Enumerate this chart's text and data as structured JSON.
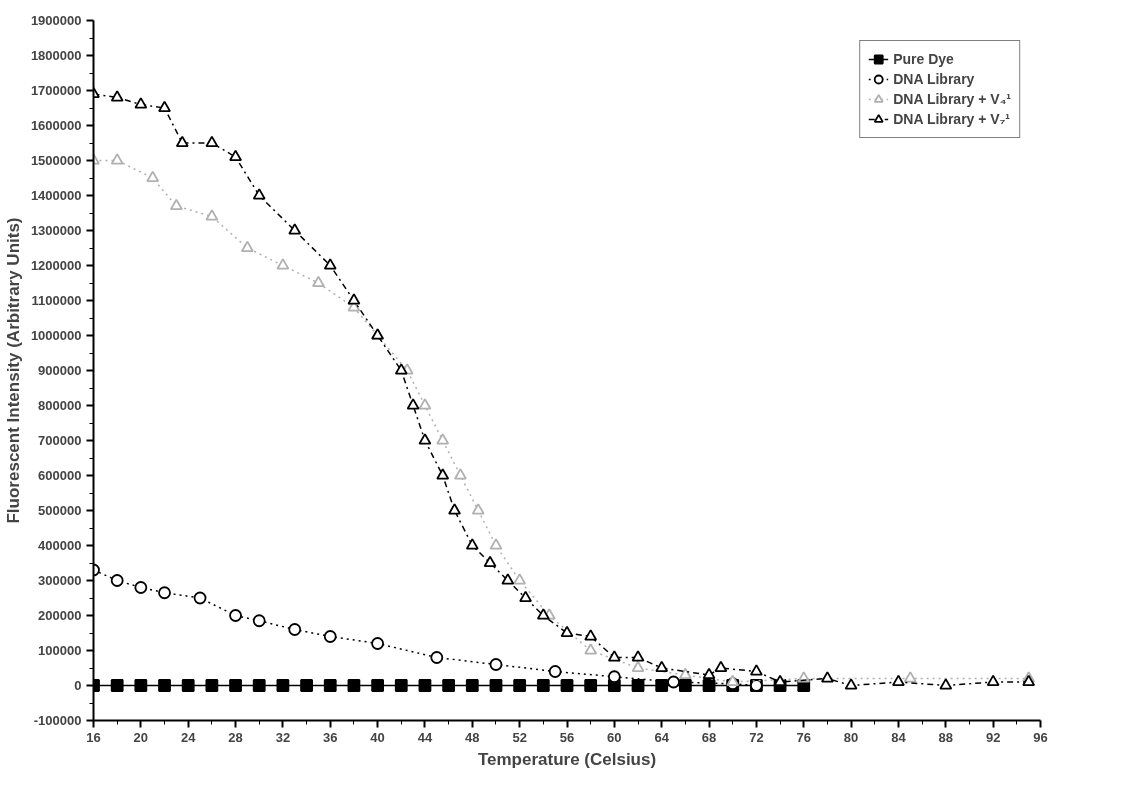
{
  "chart_data": {
    "type": "line",
    "xlabel": "Temperature (Celsius)",
    "ylabel": "Fluorescent Intensity (Arbitrary Units)",
    "xlim": [
      16,
      96
    ],
    "xticks": [
      16,
      20,
      24,
      28,
      32,
      36,
      40,
      44,
      48,
      52,
      56,
      60,
      64,
      68,
      72,
      76,
      80,
      84,
      88,
      92,
      96
    ],
    "ylim": [
      -100000,
      1900000
    ],
    "yticks": [
      -100000,
      0,
      100000,
      200000,
      300000,
      400000,
      500000,
      600000,
      700000,
      800000,
      900000,
      1000000,
      1100000,
      1200000,
      1300000,
      1400000,
      1500000,
      1600000,
      1700000,
      1800000,
      1900000
    ],
    "grid": false,
    "legend": "top right",
    "series": [
      {
        "name": "Pure Dye",
        "color": "#000000",
        "marker": "square",
        "line_style": "solid",
        "x": [
          16,
          18,
          20,
          22,
          24,
          26,
          28,
          30,
          32,
          34,
          36,
          38,
          40,
          42,
          44,
          46,
          48,
          50,
          52,
          54,
          56,
          58,
          60,
          62,
          64,
          66,
          68,
          70,
          72,
          74,
          76
        ],
        "values": [
          0,
          0,
          0,
          0,
          0,
          0,
          0,
          0,
          0,
          0,
          0,
          0,
          0,
          0,
          0,
          0,
          0,
          0,
          0,
          0,
          0,
          0,
          0,
          0,
          0,
          0,
          0,
          0,
          0,
          0,
          0
        ]
      },
      {
        "name": "DNA Library",
        "color": "#000000",
        "marker": "circle",
        "line_style": "dotted",
        "x": [
          16,
          18,
          20,
          22,
          25,
          28,
          30,
          33,
          36,
          40,
          45,
          50,
          55,
          60,
          65,
          70,
          72
        ],
        "values": [
          330000,
          300000,
          280000,
          265000,
          250000,
          200000,
          185000,
          160000,
          140000,
          120000,
          80000,
          60000,
          40000,
          25000,
          10000,
          5000,
          0
        ]
      },
      {
        "name": "DNA Library + V₄¹",
        "color": "#b0b0b0",
        "marker": "triangle",
        "line_style": "dotted",
        "x": [
          16,
          18,
          21,
          23,
          26,
          29,
          32,
          35,
          38,
          40,
          42.5,
          44,
          45.5,
          47,
          48.5,
          50,
          52,
          54.5,
          58,
          62,
          66,
          70,
          76,
          85,
          95
        ],
        "values": [
          1500000,
          1500000,
          1450000,
          1370000,
          1340000,
          1250000,
          1200000,
          1150000,
          1080000,
          1000000,
          900000,
          800000,
          700000,
          600000,
          500000,
          400000,
          300000,
          200000,
          100000,
          50000,
          30000,
          10000,
          20000,
          20000,
          20000
        ]
      },
      {
        "name": "DNA Library + V₇¹",
        "color": "#000000",
        "marker": "triangle",
        "line_style": "dashdot",
        "x": [
          16,
          18,
          20,
          22,
          23.5,
          26,
          28,
          30,
          33,
          36,
          38,
          40,
          42,
          43,
          44,
          45.5,
          46.5,
          48,
          49.5,
          51,
          52.5,
          54,
          56,
          58,
          60,
          62,
          64,
          68,
          69,
          72,
          74,
          78,
          80,
          84,
          88,
          92,
          95
        ],
        "values": [
          1690000,
          1680000,
          1660000,
          1650000,
          1550000,
          1550000,
          1510000,
          1400000,
          1300000,
          1200000,
          1100000,
          1000000,
          900000,
          800000,
          700000,
          600000,
          500000,
          400000,
          350000,
          300000,
          250000,
          200000,
          150000,
          140000,
          80000,
          80000,
          50000,
          30000,
          50000,
          40000,
          10000,
          20000,
          0,
          10000,
          0,
          10000,
          10000
        ]
      }
    ]
  }
}
